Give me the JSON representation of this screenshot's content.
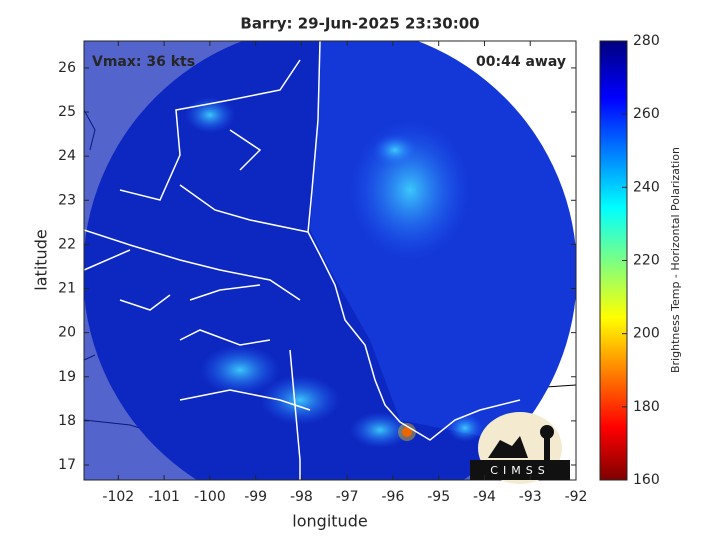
{
  "chart_data": {
    "type": "map",
    "title": "Barry: 29-Jun-2025 23:30:00",
    "annotations": [
      "Vmax: 36 kts",
      "00:44 away"
    ],
    "xlabel": "longitude",
    "ylabel": "latitude",
    "xlim": [
      -102.75,
      -92
    ],
    "ylim": [
      16.66,
      26.61
    ],
    "xticks": [
      -102,
      -101,
      -100,
      -99,
      -98,
      -97,
      -96,
      -95,
      -94,
      -93,
      -92
    ],
    "yticks": [
      17,
      18,
      19,
      20,
      21,
      22,
      23,
      24,
      25,
      26
    ],
    "colorbar": {
      "label": "Brightness Temp - Horizontal Polarization",
      "lim": [
        160,
        280
      ],
      "ticks": [
        160,
        180,
        200,
        220,
        240,
        260,
        280
      ]
    },
    "logo": "CIMSS"
  }
}
